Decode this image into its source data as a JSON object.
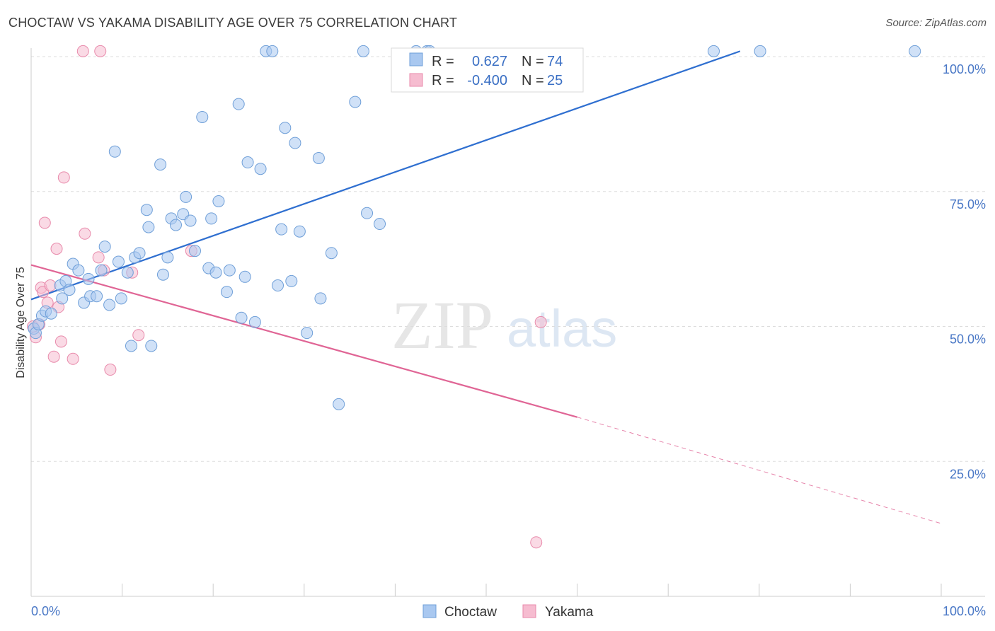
{
  "title": "CHOCTAW VS YAKAMA DISABILITY AGE OVER 75 CORRELATION CHART",
  "source": "Source: ZipAtlas.com",
  "watermark": {
    "zip": "ZIP",
    "atlas": "atlas"
  },
  "colors": {
    "choctaw_fill": "#a9c8f0",
    "choctaw_stroke": "#6f9fd8",
    "choctaw_line": "#2f6fd0",
    "yakama_fill": "#f6bcd0",
    "yakama_stroke": "#e88aab",
    "yakama_line": "#e06595",
    "axis_label": "#4a78c6",
    "grid": "#dddddd"
  },
  "chart_data": {
    "type": "scatter",
    "title": "CHOCTAW VS YAKAMA DISABILITY AGE OVER 75 CORRELATION CHART",
    "xlabel": "",
    "ylabel": "Disability Age Over 75",
    "xlim": [
      0,
      100
    ],
    "ylim": [
      0,
      103
    ],
    "x_tick_labels": [
      "0.0%",
      "100.0%"
    ],
    "y_ticks": [
      25,
      50,
      75,
      100
    ],
    "y_tick_labels": [
      "25.0%",
      "50.0%",
      "75.0%",
      "100.0%"
    ],
    "legend": {
      "position": "top-center",
      "entries": [
        {
          "series": "Choctaw",
          "r_label": "R =",
          "r_value": "0.627",
          "n_label": "N =",
          "n_value": "74"
        },
        {
          "series": "Yakama",
          "r_label": "R =",
          "r_value": "-0.400",
          "n_label": "N =",
          "n_value": "25"
        }
      ]
    },
    "series": [
      {
        "name": "Choctaw",
        "points": [
          [
            0.3,
            49.6
          ],
          [
            0.5,
            48.8
          ],
          [
            0.8,
            50.4
          ],
          [
            1.2,
            52.0
          ],
          [
            1.6,
            52.8
          ],
          [
            2.2,
            52.4
          ],
          [
            3.2,
            57.6
          ],
          [
            3.4,
            55.2
          ],
          [
            3.8,
            58.4
          ],
          [
            4.2,
            56.8
          ],
          [
            4.6,
            61.6
          ],
          [
            5.2,
            60.4
          ],
          [
            5.8,
            54.4
          ],
          [
            6.3,
            58.8
          ],
          [
            6.5,
            55.6
          ],
          [
            7.2,
            55.6
          ],
          [
            7.7,
            60.4
          ],
          [
            8.1,
            64.8
          ],
          [
            8.6,
            54.0
          ],
          [
            9.2,
            82.4
          ],
          [
            9.6,
            62.0
          ],
          [
            9.9,
            55.2
          ],
          [
            10.6,
            60.0
          ],
          [
            11.0,
            46.4
          ],
          [
            11.4,
            62.8
          ],
          [
            11.9,
            63.6
          ],
          [
            12.7,
            71.6
          ],
          [
            12.9,
            68.4
          ],
          [
            13.2,
            46.4
          ],
          [
            14.2,
            80.0
          ],
          [
            14.5,
            59.6
          ],
          [
            15.0,
            62.8
          ],
          [
            15.4,
            70.0
          ],
          [
            15.9,
            68.8
          ],
          [
            16.7,
            70.8
          ],
          [
            17.0,
            74.0
          ],
          [
            17.5,
            69.6
          ],
          [
            18.0,
            64.0
          ],
          [
            18.8,
            88.8
          ],
          [
            19.5,
            60.8
          ],
          [
            19.8,
            70.0
          ],
          [
            20.3,
            60.0
          ],
          [
            20.6,
            73.2
          ],
          [
            21.5,
            56.4
          ],
          [
            21.8,
            60.4
          ],
          [
            22.8,
            91.2
          ],
          [
            23.1,
            51.6
          ],
          [
            23.5,
            59.2
          ],
          [
            23.8,
            80.4
          ],
          [
            24.6,
            50.8
          ],
          [
            25.2,
            79.2
          ],
          [
            25.8,
            101.0
          ],
          [
            26.5,
            101.0
          ],
          [
            27.1,
            57.6
          ],
          [
            27.5,
            68.0
          ],
          [
            27.9,
            86.8
          ],
          [
            28.6,
            58.4
          ],
          [
            29.0,
            84.0
          ],
          [
            29.5,
            67.6
          ],
          [
            30.3,
            48.8
          ],
          [
            31.6,
            81.2
          ],
          [
            31.8,
            55.2
          ],
          [
            33.0,
            63.6
          ],
          [
            33.8,
            35.6
          ],
          [
            35.6,
            91.6
          ],
          [
            36.5,
            101.0
          ],
          [
            36.9,
            71.0
          ],
          [
            38.3,
            69.0
          ],
          [
            42.3,
            101.0
          ],
          [
            43.5,
            101.0
          ],
          [
            43.8,
            101.0
          ],
          [
            75.0,
            101.0
          ],
          [
            80.1,
            101.0
          ],
          [
            97.1,
            101.0
          ]
        ],
        "fit_line": {
          "x": [
            0.0,
            77.9
          ],
          "y": [
            55.0,
            101.0
          ]
        }
      },
      {
        "name": "Yakama",
        "points": [
          [
            0.2,
            50.0
          ],
          [
            0.5,
            48.0
          ],
          [
            0.9,
            50.4
          ],
          [
            1.1,
            57.2
          ],
          [
            1.3,
            56.4
          ],
          [
            1.5,
            69.2
          ],
          [
            1.8,
            54.4
          ],
          [
            2.1,
            57.6
          ],
          [
            2.5,
            44.4
          ],
          [
            2.8,
            64.4
          ],
          [
            3.0,
            53.6
          ],
          [
            3.3,
            47.2
          ],
          [
            3.6,
            77.6
          ],
          [
            4.6,
            44.0
          ],
          [
            5.7,
            101.0
          ],
          [
            5.9,
            67.2
          ],
          [
            7.4,
            62.8
          ],
          [
            7.6,
            101.0
          ],
          [
            8.0,
            60.4
          ],
          [
            8.7,
            42.0
          ],
          [
            11.1,
            60.0
          ],
          [
            11.8,
            48.4
          ],
          [
            17.6,
            64.0
          ],
          [
            55.5,
            10.0
          ],
          [
            56.0,
            50.8
          ]
        ],
        "fit_line": {
          "x": [
            0.0,
            60.0
          ],
          "y": [
            61.4,
            33.2
          ]
        },
        "fit_line_dashed": {
          "x": [
            60.0,
            100.0
          ],
          "y": [
            33.2,
            13.5
          ]
        }
      }
    ]
  },
  "bottom_legend": [
    {
      "label": "Choctaw"
    },
    {
      "label": "Yakama"
    }
  ]
}
